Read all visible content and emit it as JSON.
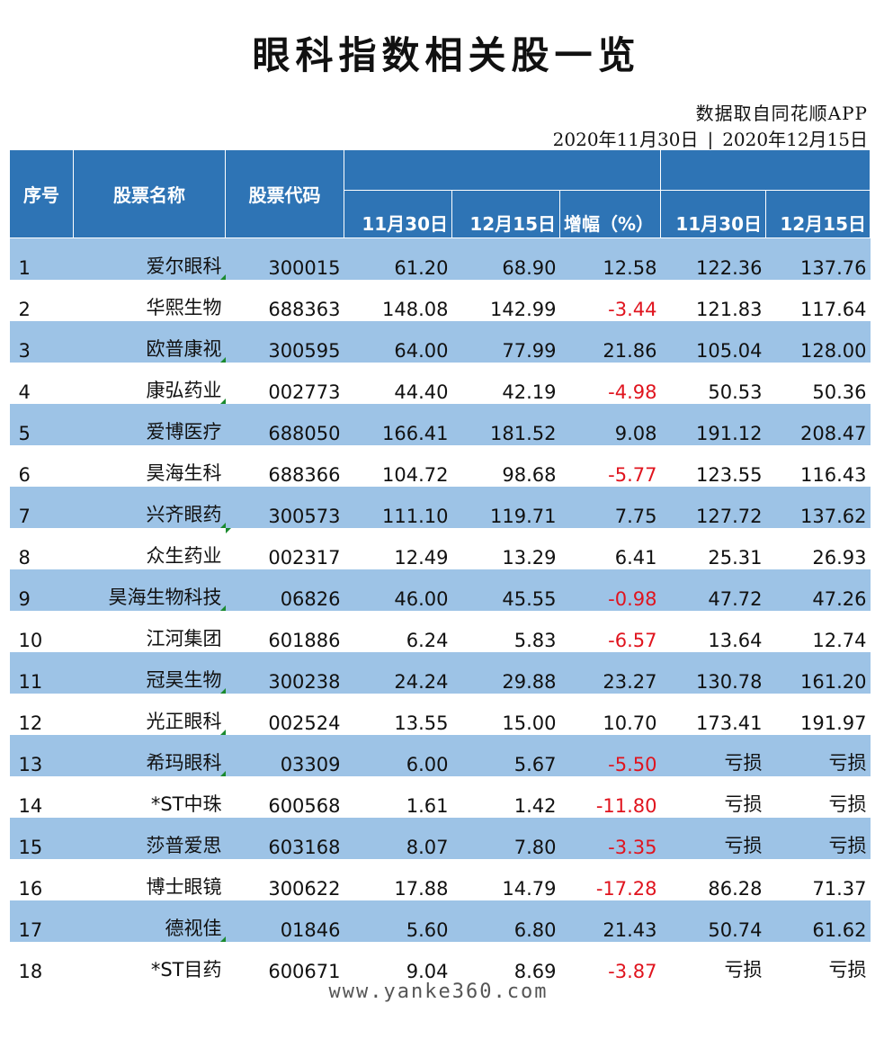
{
  "title": "眼科指数相关股一览",
  "source": "数据取自同花顺APP",
  "date_range": {
    "start": "2020年11月30日",
    "sep": "|",
    "end": "2020年12月15日"
  },
  "headers": {
    "index": "序号",
    "name": "股票名称",
    "code": "股票代码",
    "price_group": "",
    "pe_group": "",
    "price_d1": "11月30日",
    "price_d2": "12月15日",
    "change": "增幅（%）",
    "pe_d1": "11月30日",
    "pe_d2": "12月15日"
  },
  "rows": [
    {
      "idx": "1",
      "name": "爱尔眼科",
      "code": "300015",
      "p1": "61.20",
      "p2": "68.90",
      "chg": "12.58",
      "neg": false,
      "v1": "122.36",
      "v2": "137.76",
      "mark": "name"
    },
    {
      "idx": "2",
      "name": "华熙生物",
      "code": "688363",
      "p1": "148.08",
      "p2": "142.99",
      "chg": "-3.44",
      "neg": true,
      "v1": "121.83",
      "v2": "117.64",
      "mark": ""
    },
    {
      "idx": "3",
      "name": "欧普康视",
      "code": "300595",
      "p1": "64.00",
      "p2": "77.99",
      "chg": "21.86",
      "neg": false,
      "v1": "105.04",
      "v2": "128.00",
      "mark": "name"
    },
    {
      "idx": "4",
      "name": "康弘药业",
      "code": "002773",
      "p1": "44.40",
      "p2": "42.19",
      "chg": "-4.98",
      "neg": true,
      "v1": "50.53",
      "v2": "50.36",
      "mark": "name"
    },
    {
      "idx": "5",
      "name": "爱博医疗",
      "code": "688050",
      "p1": "166.41",
      "p2": "181.52",
      "chg": "9.08",
      "neg": false,
      "v1": "191.12",
      "v2": "208.47",
      "mark": ""
    },
    {
      "idx": "6",
      "name": "昊海生科",
      "code": "688366",
      "p1": "104.72",
      "p2": "98.68",
      "chg": "-5.77",
      "neg": true,
      "v1": "123.55",
      "v2": "116.43",
      "mark": ""
    },
    {
      "idx": "7",
      "name": "兴齐眼药",
      "code": "300573",
      "p1": "111.10",
      "p2": "119.71",
      "chg": "7.75",
      "neg": false,
      "v1": "127.72",
      "v2": "137.62",
      "mark": "name"
    },
    {
      "idx": "8",
      "name": "众生药业",
      "code": "002317",
      "p1": "12.49",
      "p2": "13.29",
      "chg": "6.41",
      "neg": false,
      "v1": "25.31",
      "v2": "26.93",
      "mark": "code"
    },
    {
      "idx": "9",
      "name": "昊海生物科技",
      "code": "06826",
      "p1": "46.00",
      "p2": "45.55",
      "chg": "-0.98",
      "neg": true,
      "v1": "47.72",
      "v2": "47.26",
      "mark": "name"
    },
    {
      "idx": "10",
      "name": "江河集团",
      "code": "601886",
      "p1": "6.24",
      "p2": "5.83",
      "chg": "-6.57",
      "neg": true,
      "v1": "13.64",
      "v2": "12.74",
      "mark": ""
    },
    {
      "idx": "11",
      "name": "冠昊生物",
      "code": "300238",
      "p1": "24.24",
      "p2": "29.88",
      "chg": "23.27",
      "neg": false,
      "v1": "130.78",
      "v2": "161.20",
      "mark": "name"
    },
    {
      "idx": "12",
      "name": "光正眼科",
      "code": "002524",
      "p1": "13.55",
      "p2": "15.00",
      "chg": "10.70",
      "neg": false,
      "v1": "173.41",
      "v2": "191.97",
      "mark": "name"
    },
    {
      "idx": "13",
      "name": "希玛眼科",
      "code": "03309",
      "p1": "6.00",
      "p2": "5.67",
      "chg": "-5.50",
      "neg": true,
      "v1": "亏损",
      "v2": "亏损",
      "mark": "name"
    },
    {
      "idx": "14",
      "name": "*ST中珠",
      "code": "600568",
      "p1": "1.61",
      "p2": "1.42",
      "chg": "-11.80",
      "neg": true,
      "v1": "亏损",
      "v2": "亏损",
      "mark": ""
    },
    {
      "idx": "15",
      "name": "莎普爱思",
      "code": "603168",
      "p1": "8.07",
      "p2": "7.80",
      "chg": "-3.35",
      "neg": true,
      "v1": "亏损",
      "v2": "亏损",
      "mark": ""
    },
    {
      "idx": "16",
      "name": "博士眼镜",
      "code": "300622",
      "p1": "17.88",
      "p2": "14.79",
      "chg": "-17.28",
      "neg": true,
      "v1": "86.28",
      "v2": "71.37",
      "mark": ""
    },
    {
      "idx": "17",
      "name": "德视佳",
      "code": "01846",
      "p1": "5.60",
      "p2": "6.80",
      "chg": "21.43",
      "neg": false,
      "v1": "50.74",
      "v2": "61.62",
      "mark": "name"
    },
    {
      "idx": "18",
      "name": "*ST目药",
      "code": "600671",
      "p1": "9.04",
      "p2": "8.69",
      "chg": "-3.87",
      "neg": true,
      "v1": "亏损",
      "v2": "亏损",
      "mark": ""
    }
  ],
  "watermark": "www.yanke360.com",
  "colors": {
    "header_bg": "#2e74b5",
    "band": "#9dc3e6",
    "negative": "#e0141e",
    "marker": "#1a8a2e"
  }
}
